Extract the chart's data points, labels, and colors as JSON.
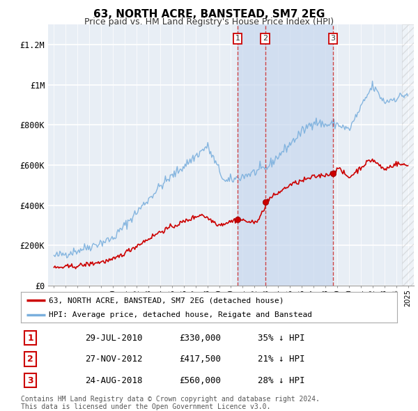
{
  "title": "63, NORTH ACRE, BANSTEAD, SM7 2EG",
  "subtitle": "Price paid vs. HM Land Registry's House Price Index (HPI)",
  "legend_property": "63, NORTH ACRE, BANSTEAD, SM7 2EG (detached house)",
  "legend_hpi": "HPI: Average price, detached house, Reigate and Banstead",
  "xlim": [
    1994.5,
    2025.5
  ],
  "ylim": [
    0,
    1300000
  ],
  "yticks": [
    0,
    200000,
    400000,
    600000,
    800000,
    1000000,
    1200000
  ],
  "ytick_labels": [
    "£0",
    "£200K",
    "£400K",
    "£600K",
    "£800K",
    "£1M",
    "£1.2M"
  ],
  "sales": [
    {
      "date": 2010.57,
      "price": 330000,
      "label": "1",
      "text": "29-JUL-2010",
      "amount": "£330,000",
      "hpi_diff": "35% ↓ HPI"
    },
    {
      "date": 2012.9,
      "price": 417500,
      "label": "2",
      "text": "27-NOV-2012",
      "amount": "£417,500",
      "hpi_diff": "21% ↓ HPI"
    },
    {
      "date": 2018.65,
      "price": 560000,
      "label": "3",
      "text": "24-AUG-2018",
      "amount": "£560,000",
      "hpi_diff": "28% ↓ HPI"
    }
  ],
  "property_color": "#cc0000",
  "hpi_color": "#7aafdd",
  "plot_bg": "#e8eef5",
  "grid_color": "#ffffff",
  "sale_dashed_color": "#cc3333",
  "shade_color": "#c8d8ee",
  "footer": "Contains HM Land Registry data © Crown copyright and database right 2024.\nThis data is licensed under the Open Government Licence v3.0."
}
